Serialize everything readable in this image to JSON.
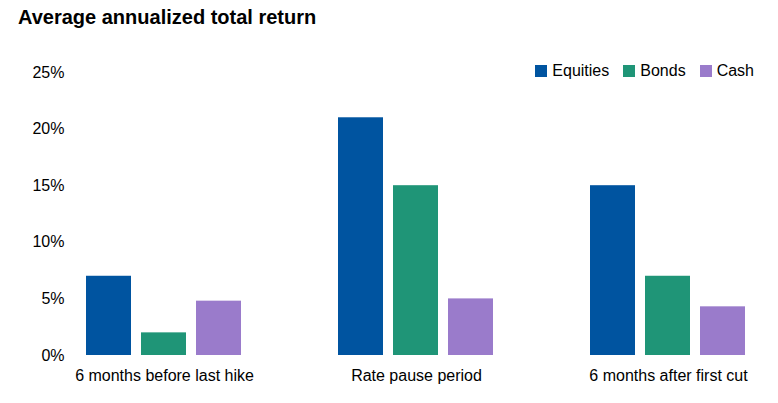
{
  "chart_data": {
    "type": "bar",
    "title": "Average annualized total return",
    "categories": [
      "6 months before last hike",
      "Rate pause period",
      "6 months after first cut"
    ],
    "series": [
      {
        "name": "Equities",
        "color": "#0054A0",
        "values": [
          7,
          21,
          15
        ]
      },
      {
        "name": "Bonds",
        "color": "#1F9577",
        "values": [
          2,
          15,
          7
        ]
      },
      {
        "name": "Cash",
        "color": "#9A7BCB",
        "values": [
          4.8,
          5,
          4.3
        ]
      }
    ],
    "ylim": [
      0,
      25
    ],
    "yticks": [
      {
        "value": 0,
        "label": "0%"
      },
      {
        "value": 5,
        "label": "5%"
      },
      {
        "value": 10,
        "label": "10%"
      },
      {
        "value": 15,
        "label": "15%"
      },
      {
        "value": 20,
        "label": "20%"
      },
      {
        "value": 25,
        "label": "25%"
      }
    ],
    "grid": false,
    "legend": "top-right"
  }
}
